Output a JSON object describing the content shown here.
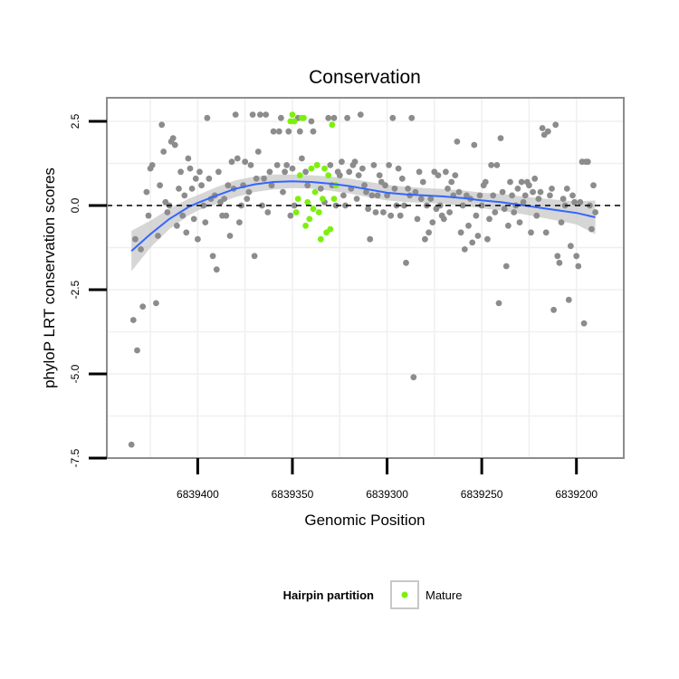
{
  "chart_data": {
    "type": "scatter",
    "title": "Conservation",
    "xlabel": "Genomic Position",
    "ylabel": "phyloP LRT conservation scores",
    "x_reversed": true,
    "xlim": [
      6839175,
      6839448
    ],
    "ylim": [
      -7.5,
      3.2
    ],
    "x_ticks": [
      6839400,
      6839350,
      6839300,
      6839250,
      6839200
    ],
    "x_tick_labels": [
      "6839400",
      "6839350",
      "6839300",
      "6839250",
      "6839200"
    ],
    "y_ticks": [
      -7.5,
      -5.0,
      -2.5,
      0.0,
      2.5
    ],
    "y_tick_labels": [
      "-7.5",
      "-5.0",
      "-2.5",
      "0.0",
      "2.5"
    ],
    "reference_line_y": 0,
    "grid": true,
    "legend": {
      "position": "bottom",
      "title": "Hairpin partition",
      "entries": [
        {
          "label": "Mature",
          "color": "#7cf00c"
        }
      ]
    },
    "colors": {
      "points": "#8c8c8c",
      "mature": "#7cf00c",
      "smooth_line": "#3366ff",
      "confidence_band": "#c8c8c8",
      "panel_border": "#8c8c8c",
      "grid": "#efefef"
    },
    "series": [
      {
        "name": "",
        "color": "#8c8c8c",
        "points": [
          [
            6839435,
            -7.1
          ],
          [
            6839434,
            -3.4
          ],
          [
            6839433,
            -1.0
          ],
          [
            6839432,
            -4.3
          ],
          [
            6839430,
            -1.3
          ],
          [
            6839429,
            -3.0
          ],
          [
            6839427,
            0.4
          ],
          [
            6839426,
            -0.3
          ],
          [
            6839425,
            1.1
          ],
          [
            6839424,
            1.2
          ],
          [
            6839422,
            -2.9
          ],
          [
            6839421,
            -0.9
          ],
          [
            6839420,
            0.6
          ],
          [
            6839419,
            2.4
          ],
          [
            6839418,
            1.6
          ],
          [
            6839417,
            0.1
          ],
          [
            6839416,
            -0.2
          ],
          [
            6839415,
            0.0
          ],
          [
            6839414,
            1.9
          ],
          [
            6839413,
            2.0
          ],
          [
            6839412,
            1.8
          ],
          [
            6839411,
            -0.6
          ],
          [
            6839410,
            0.5
          ],
          [
            6839409,
            1.0
          ],
          [
            6839408,
            -0.3
          ],
          [
            6839407,
            0.3
          ],
          [
            6839406,
            -0.8
          ],
          [
            6839405,
            1.4
          ],
          [
            6839404,
            1.1
          ],
          [
            6839403,
            0.5
          ],
          [
            6839402,
            -0.4
          ],
          [
            6839401,
            0.8
          ],
          [
            6839400,
            -1.0
          ],
          [
            6839399,
            1.0
          ],
          [
            6839398,
            0.6
          ],
          [
            6839397,
            0.0
          ],
          [
            6839396,
            -0.5
          ],
          [
            6839395,
            2.6
          ],
          [
            6839394,
            0.8
          ],
          [
            6839393,
            0.2
          ],
          [
            6839392,
            -1.5
          ],
          [
            6839391,
            0.3
          ],
          [
            6839390,
            -1.9
          ],
          [
            6839389,
            1.0
          ],
          [
            6839388,
            0.1
          ],
          [
            6839387,
            -0.3
          ],
          [
            6839386,
            0.2
          ],
          [
            6839385,
            -0.3
          ],
          [
            6839384,
            0.6
          ],
          [
            6839383,
            -0.9
          ],
          [
            6839382,
            1.3
          ],
          [
            6839381,
            0.5
          ],
          [
            6839380,
            2.7
          ],
          [
            6839379,
            1.4
          ],
          [
            6839378,
            -0.5
          ],
          [
            6839377,
            0.0
          ],
          [
            6839376,
            0.6
          ],
          [
            6839375,
            1.3
          ],
          [
            6839374,
            0.2
          ],
          [
            6839373,
            0.4
          ],
          [
            6839372,
            1.2
          ],
          [
            6839371,
            2.7
          ],
          [
            6839370,
            -1.5
          ],
          [
            6839369,
            0.8
          ],
          [
            6839368,
            1.6
          ],
          [
            6839367,
            2.7
          ],
          [
            6839366,
            0.0
          ],
          [
            6839365,
            0.8
          ],
          [
            6839364,
            2.7
          ],
          [
            6839363,
            -0.2
          ],
          [
            6839362,
            1.0
          ],
          [
            6839361,
            0.6
          ],
          [
            6839360,
            2.2
          ],
          [
            6839358,
            1.2
          ],
          [
            6839357,
            2.2
          ],
          [
            6839356,
            2.6
          ],
          [
            6839355,
            0.4
          ],
          [
            6839354,
            1.0
          ],
          [
            6839353,
            1.2
          ],
          [
            6839352,
            2.2
          ],
          [
            6839351,
            -0.3
          ],
          [
            6839350,
            1.1
          ],
          [
            6839349,
            0.0
          ],
          [
            6839347,
            2.6
          ],
          [
            6839346,
            2.2
          ],
          [
            6839345,
            1.4
          ],
          [
            6839343,
            1.0
          ],
          [
            6839342,
            0.6
          ],
          [
            6839340,
            2.5
          ],
          [
            6839339,
            2.2
          ],
          [
            6839337,
            1.2
          ],
          [
            6839335,
            0.5
          ],
          [
            6839333,
            0.1
          ],
          [
            6839331,
            2.6
          ],
          [
            6839330,
            1.2
          ],
          [
            6839329,
            0.6
          ],
          [
            6839328,
            2.6
          ],
          [
            6839327,
            0.0
          ],
          [
            6839326,
            1.0
          ],
          [
            6839325,
            0.9
          ],
          [
            6839324,
            1.3
          ],
          [
            6839323,
            0.3
          ],
          [
            6839322,
            0.0
          ],
          [
            6839321,
            2.6
          ],
          [
            6839320,
            1.0
          ],
          [
            6839319,
            0.5
          ],
          [
            6839318,
            1.2
          ],
          [
            6839317,
            1.3
          ],
          [
            6839316,
            0.2
          ],
          [
            6839315,
            0.9
          ],
          [
            6839314,
            2.7
          ],
          [
            6839313,
            1.1
          ],
          [
            6839312,
            0.6
          ],
          [
            6839311,
            0.4
          ],
          [
            6839310,
            -0.1
          ],
          [
            6839309,
            -1.0
          ],
          [
            6839308,
            0.3
          ],
          [
            6839307,
            1.2
          ],
          [
            6839306,
            -0.2
          ],
          [
            6839305,
            0.3
          ],
          [
            6839304,
            0.9
          ],
          [
            6839303,
            0.7
          ],
          [
            6839302,
            -0.2
          ],
          [
            6839301,
            0.6
          ],
          [
            6839300,
            0.3
          ],
          [
            6839299,
            1.2
          ],
          [
            6839298,
            -0.3
          ],
          [
            6839297,
            2.6
          ],
          [
            6839296,
            0.5
          ],
          [
            6839295,
            0.0
          ],
          [
            6839294,
            1.1
          ],
          [
            6839293,
            -0.3
          ],
          [
            6839292,
            0.8
          ],
          [
            6839291,
            0.0
          ],
          [
            6839290,
            -1.7
          ],
          [
            6839289,
            0.5
          ],
          [
            6839288,
            0.3
          ],
          [
            6839287,
            2.6
          ],
          [
            6839286,
            -5.1
          ],
          [
            6839285,
            0.4
          ],
          [
            6839284,
            -0.4
          ],
          [
            6839283,
            1.0
          ],
          [
            6839282,
            0.2
          ],
          [
            6839281,
            0.7
          ],
          [
            6839280,
            -1.0
          ],
          [
            6839279,
            0.0
          ],
          [
            6839278,
            -0.8
          ],
          [
            6839277,
            0.2
          ],
          [
            6839276,
            -0.5
          ],
          [
            6839275,
            1.0
          ],
          [
            6839274,
            -0.1
          ],
          [
            6839273,
            0.9
          ],
          [
            6839272,
            0.0
          ],
          [
            6839271,
            -0.3
          ],
          [
            6839270,
            -0.4
          ],
          [
            6839269,
            1.0
          ],
          [
            6839268,
            0.5
          ],
          [
            6839267,
            -0.2
          ],
          [
            6839266,
            0.7
          ],
          [
            6839265,
            0.3
          ],
          [
            6839264,
            0.9
          ],
          [
            6839263,
            1.9
          ],
          [
            6839262,
            0.4
          ],
          [
            6839261,
            -0.8
          ],
          [
            6839260,
            0.0
          ],
          [
            6839259,
            -1.3
          ],
          [
            6839258,
            0.3
          ],
          [
            6839257,
            -0.6
          ],
          [
            6839256,
            0.2
          ],
          [
            6839255,
            -1.1
          ],
          [
            6839254,
            1.8
          ],
          [
            6839253,
            -0.3
          ],
          [
            6839252,
            -0.9
          ],
          [
            6839251,
            0.3
          ],
          [
            6839250,
            0.0
          ],
          [
            6839249,
            0.6
          ],
          [
            6839248,
            0.7
          ],
          [
            6839247,
            -1.0
          ],
          [
            6839246,
            -0.4
          ],
          [
            6839245,
            1.2
          ],
          [
            6839244,
            0.3
          ],
          [
            6839243,
            -0.2
          ],
          [
            6839242,
            1.2
          ],
          [
            6839241,
            -2.9
          ],
          [
            6839240,
            2.0
          ],
          [
            6839239,
            0.4
          ],
          [
            6839238,
            -0.1
          ],
          [
            6839237,
            -1.8
          ],
          [
            6839236,
            -0.6
          ],
          [
            6839235,
            0.7
          ],
          [
            6839234,
            0.3
          ],
          [
            6839233,
            -0.2
          ],
          [
            6839232,
            0.0
          ],
          [
            6839231,
            0.5
          ],
          [
            6839230,
            -0.5
          ],
          [
            6839229,
            0.7
          ],
          [
            6839228,
            0.1
          ],
          [
            6839227,
            0.3
          ],
          [
            6839226,
            0.7
          ],
          [
            6839225,
            0.6
          ],
          [
            6839224,
            -0.8
          ],
          [
            6839223,
            0.4
          ],
          [
            6839222,
            0.8
          ],
          [
            6839221,
            -0.3
          ],
          [
            6839220,
            0.2
          ],
          [
            6839219,
            0.4
          ],
          [
            6839218,
            2.3
          ],
          [
            6839217,
            2.1
          ],
          [
            6839216,
            -0.8
          ],
          [
            6839215,
            2.2
          ],
          [
            6839214,
            0.3
          ],
          [
            6839213,
            0.5
          ],
          [
            6839212,
            -3.1
          ],
          [
            6839211,
            2.4
          ],
          [
            6839210,
            -1.5
          ],
          [
            6839209,
            -1.7
          ],
          [
            6839208,
            -0.5
          ],
          [
            6839207,
            0.2
          ],
          [
            6839206,
            0.0
          ],
          [
            6839205,
            0.5
          ],
          [
            6839204,
            -2.8
          ],
          [
            6839203,
            -1.2
          ],
          [
            6839202,
            0.3
          ],
          [
            6839201,
            0.1
          ],
          [
            6839200,
            -1.5
          ],
          [
            6839199,
            -1.8
          ],
          [
            6839198,
            0.1
          ],
          [
            6839197,
            1.3
          ],
          [
            6839196,
            -3.5
          ],
          [
            6839195,
            1.3
          ],
          [
            6839194,
            1.3
          ],
          [
            6839193,
            0.0
          ],
          [
            6839192,
            -0.7
          ],
          [
            6839191,
            0.6
          ],
          [
            6839190,
            -0.2
          ]
        ]
      },
      {
        "name": "Mature",
        "color": "#7cf00c",
        "points": [
          [
            6839351,
            2.5
          ],
          [
            6839350,
            2.7
          ],
          [
            6839349,
            2.5
          ],
          [
            6839348,
            -0.2
          ],
          [
            6839347,
            0.2
          ],
          [
            6839346,
            0.9
          ],
          [
            6839345,
            2.6
          ],
          [
            6839344,
            2.6
          ],
          [
            6839343,
            -0.6
          ],
          [
            6839342,
            0.1
          ],
          [
            6839341,
            -0.4
          ],
          [
            6839340,
            1.1
          ],
          [
            6839339,
            -0.1
          ],
          [
            6839338,
            0.4
          ],
          [
            6839337,
            1.2
          ],
          [
            6839336,
            -0.2
          ],
          [
            6839335,
            -1.0
          ],
          [
            6839334,
            0.2
          ],
          [
            6839333,
            1.1
          ],
          [
            6839332,
            -0.8
          ],
          [
            6839331,
            0.9
          ],
          [
            6839330,
            -0.7
          ],
          [
            6839329,
            2.4
          ],
          [
            6839328,
            0.2
          ],
          [
            6839327,
            0.6
          ]
        ]
      }
    ],
    "smooth": {
      "x": [
        6839435,
        6839425,
        6839415,
        6839405,
        6839400,
        6839390,
        6839380,
        6839370,
        6839360,
        6839350,
        6839340,
        6839330,
        6839320,
        6839310,
        6839300,
        6839290,
        6839280,
        6839270,
        6839260,
        6839250,
        6839240,
        6839230,
        6839220,
        6839210,
        6839200,
        6839190
      ],
      "y": [
        -1.35,
        -0.85,
        -0.4,
        -0.05,
        0.08,
        0.3,
        0.5,
        0.63,
        0.7,
        0.72,
        0.7,
        0.65,
        0.58,
        0.48,
        0.38,
        0.33,
        0.3,
        0.27,
        0.22,
        0.15,
        0.1,
        0.02,
        -0.06,
        -0.14,
        -0.22,
        -0.35
      ],
      "lower": [
        -1.95,
        -1.25,
        -0.7,
        -0.3,
        -0.15,
        0.05,
        0.25,
        0.4,
        0.48,
        0.52,
        0.5,
        0.44,
        0.36,
        0.25,
        0.15,
        0.1,
        0.08,
        0.05,
        -0.01,
        -0.08,
        -0.15,
        -0.24,
        -0.34,
        -0.45,
        -0.56,
        -0.85
      ],
      "upper": [
        -0.75,
        -0.45,
        -0.1,
        0.2,
        0.31,
        0.55,
        0.75,
        0.86,
        0.92,
        0.92,
        0.9,
        0.86,
        0.8,
        0.71,
        0.61,
        0.56,
        0.52,
        0.49,
        0.45,
        0.38,
        0.35,
        0.28,
        0.22,
        0.17,
        0.12,
        0.15
      ]
    }
  }
}
